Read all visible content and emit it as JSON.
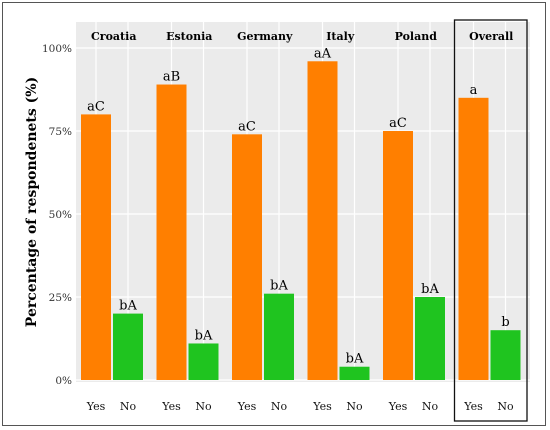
{
  "chart_data": {
    "type": "bar",
    "ylabel": "Percentage of respondenets (%)",
    "ylim": [
      0,
      100
    ],
    "yticks": [
      {
        "value": 0,
        "label": "0%"
      },
      {
        "value": 25,
        "label": "25%"
      },
      {
        "value": 50,
        "label": "50%"
      },
      {
        "value": 75,
        "label": "75%"
      },
      {
        "value": 100,
        "label": "100%"
      }
    ],
    "grid": true,
    "highlighted_panel": "Overall",
    "colors": {
      "Yes": "#ff7f00",
      "No": "#1fc41f"
    },
    "panels": [
      {
        "name": "Croatia",
        "bars": [
          {
            "category": "Yes",
            "value": 80,
            "label": "aC"
          },
          {
            "category": "No",
            "value": 20,
            "label": "bA"
          }
        ]
      },
      {
        "name": "Estonia",
        "bars": [
          {
            "category": "Yes",
            "value": 89,
            "label": "aB"
          },
          {
            "category": "No",
            "value": 11,
            "label": "bA"
          }
        ]
      },
      {
        "name": "Germany",
        "bars": [
          {
            "category": "Yes",
            "value": 74,
            "label": "aC"
          },
          {
            "category": "No",
            "value": 26,
            "label": "bA"
          }
        ]
      },
      {
        "name": "Italy",
        "bars": [
          {
            "category": "Yes",
            "value": 96,
            "label": "aA"
          },
          {
            "category": "No",
            "value": 4,
            "label": "bA"
          }
        ]
      },
      {
        "name": "Poland",
        "bars": [
          {
            "category": "Yes",
            "value": 75,
            "label": "aC"
          },
          {
            "category": "No",
            "value": 25,
            "label": "bA"
          }
        ]
      },
      {
        "name": "Overall",
        "bars": [
          {
            "category": "Yes",
            "value": 85,
            "label": "a"
          },
          {
            "category": "No",
            "value": 15,
            "label": "b"
          }
        ]
      }
    ]
  }
}
